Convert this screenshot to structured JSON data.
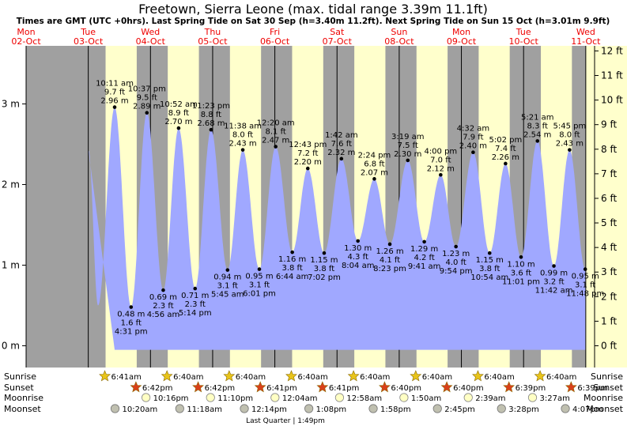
{
  "chart_data": {
    "type": "area",
    "title": "Freetown, Sierra Leone (max. tidal range 3.39m 11.1ft)",
    "subtitle": "Times are GMT (UTC +0hrs). Last Spring Tide on Sat 30 Sep (h=3.40m 11.2ft). Next Spring Tide on Sun 15 Oct (h=3.01m 9.9ft)",
    "days": [
      {
        "dow": "Mon",
        "date": "02-Oct"
      },
      {
        "dow": "Tue",
        "date": "03-Oct"
      },
      {
        "dow": "Wed",
        "date": "04-Oct"
      },
      {
        "dow": "Thu",
        "date": "05-Oct"
      },
      {
        "dow": "Fri",
        "date": "06-Oct"
      },
      {
        "dow": "Sat",
        "date": "07-Oct"
      },
      {
        "dow": "Sun",
        "date": "08-Oct"
      },
      {
        "dow": "Mon",
        "date": "09-Oct"
      },
      {
        "dow": "Tue",
        "date": "10-Oct"
      },
      {
        "dow": "Wed",
        "date": "11-Oct"
      }
    ],
    "y_left_ticks": [
      "0 m",
      "1 m",
      "2 m",
      "3 m"
    ],
    "y_right_ticks": [
      "0 ft",
      "1 ft",
      "2 ft",
      "3 ft",
      "4 ft",
      "5 ft",
      "6 ft",
      "7 ft",
      "8 ft",
      "9 ft",
      "10 ft",
      "11 ft",
      "12 ft"
    ],
    "ylim_m": [
      -0.08,
      3.68
    ],
    "x_range_days": [
      0,
      9
    ],
    "start_level_m": 2.42,
    "tides": [
      {
        "type": "high",
        "day": 1,
        "time": "10:11 am",
        "h_m": 2.96,
        "ft": "9.7 ft",
        "m": "2.96 m",
        "t": 10.18
      },
      {
        "type": "low",
        "day": 1,
        "time": "4:31 pm",
        "h_m": 0.48,
        "ft": "1.6 ft",
        "m": "0.48 m",
        "t": 16.52
      },
      {
        "type": "high",
        "day": 1,
        "time": "10:37 pm",
        "h_m": 2.89,
        "ft": "9.5 ft",
        "m": "2.89 m",
        "t": 22.62
      },
      {
        "type": "low",
        "day": 2,
        "time": "4:56 am",
        "h_m": 0.69,
        "ft": "2.3 ft",
        "m": "0.69 m",
        "t": 4.93
      },
      {
        "type": "high",
        "day": 2,
        "time": "10:52 am",
        "h_m": 2.7,
        "ft": "8.9 ft",
        "m": "2.70 m",
        "t": 10.87
      },
      {
        "type": "low",
        "day": 2,
        "time": "5:14 pm",
        "h_m": 0.71,
        "ft": "2.3 ft",
        "m": "0.71 m",
        "t": 17.23
      },
      {
        "type": "high",
        "day": 2,
        "time": "11:23 pm",
        "h_m": 2.68,
        "ft": "8.8 ft",
        "m": "2.68 m",
        "t": 23.38
      },
      {
        "type": "low",
        "day": 3,
        "time": "5:45 am",
        "h_m": 0.94,
        "ft": "3.1 ft",
        "m": "0.94 m",
        "t": 5.75
      },
      {
        "type": "high",
        "day": 3,
        "time": "11:38 am",
        "h_m": 2.43,
        "ft": "8.0 ft",
        "m": "2.43 m",
        "t": 11.63
      },
      {
        "type": "low",
        "day": 3,
        "time": "6:01 pm",
        "h_m": 0.95,
        "ft": "3.1 ft",
        "m": "0.95 m",
        "t": 18.02
      },
      {
        "type": "high",
        "day": 4,
        "time": "12:20 am",
        "h_m": 2.47,
        "ft": "8.1 ft",
        "m": "2.47 m",
        "t": 0.33
      },
      {
        "type": "low",
        "day": 4,
        "time": "6:44 am",
        "h_m": 1.16,
        "ft": "3.8 ft",
        "m": "1.16 m",
        "t": 6.73
      },
      {
        "type": "high",
        "day": 4,
        "time": "12:43 pm",
        "h_m": 2.2,
        "ft": "7.2 ft",
        "m": "2.20 m",
        "t": 12.72
      },
      {
        "type": "low",
        "day": 4,
        "time": "7:02 pm",
        "h_m": 1.15,
        "ft": "3.8 ft",
        "m": "1.15 m",
        "t": 19.03
      },
      {
        "type": "high",
        "day": 5,
        "time": "1:42 am",
        "h_m": 2.32,
        "ft": "7.6 ft",
        "m": "2.32 m",
        "t": 1.7
      },
      {
        "type": "low",
        "day": 5,
        "time": "8:04 am",
        "h_m": 1.3,
        "ft": "4.3 ft",
        "m": "1.30 m",
        "t": 8.07
      },
      {
        "type": "high",
        "day": 5,
        "time": "2:24 pm",
        "h_m": 2.07,
        "ft": "6.8 ft",
        "m": "2.07 m",
        "t": 14.4
      },
      {
        "type": "low",
        "day": 5,
        "time": "8:23 pm",
        "h_m": 1.26,
        "ft": "4.1 ft",
        "m": "1.26 m",
        "t": 20.38
      },
      {
        "type": "high",
        "day": 6,
        "time": "3:19 am",
        "h_m": 2.3,
        "ft": "7.5 ft",
        "m": "2.30 m",
        "t": 3.32
      },
      {
        "type": "low",
        "day": 6,
        "time": "9:41 am",
        "h_m": 1.29,
        "ft": "4.2 ft",
        "m": "1.29 m",
        "t": 9.68
      },
      {
        "type": "high",
        "day": 6,
        "time": "4:00 pm",
        "h_m": 2.12,
        "ft": "7.0 ft",
        "m": "2.12 m",
        "t": 16.0
      },
      {
        "type": "low",
        "day": 6,
        "time": "9:54 pm",
        "h_m": 1.23,
        "ft": "4.0 ft",
        "m": "1.23 m",
        "t": 21.9
      },
      {
        "type": "high",
        "day": 7,
        "time": "4:32 am",
        "h_m": 2.4,
        "ft": "7.9 ft",
        "m": "2.40 m",
        "t": 4.53
      },
      {
        "type": "low",
        "day": 7,
        "time": "10:54 am",
        "h_m": 1.15,
        "ft": "3.8 ft",
        "m": "1.15 m",
        "t": 10.9
      },
      {
        "type": "high",
        "day": 7,
        "time": "5:02 pm",
        "h_m": 2.26,
        "ft": "7.4 ft",
        "m": "2.26 m",
        "t": 17.03
      },
      {
        "type": "low",
        "day": 7,
        "time": "11:01 pm",
        "h_m": 1.1,
        "ft": "3.6 ft",
        "m": "1.10 m",
        "t": 23.02
      },
      {
        "type": "high",
        "day": 8,
        "time": "5:21 am",
        "h_m": 2.54,
        "ft": "8.3 ft",
        "m": "2.54 m",
        "t": 5.35
      },
      {
        "type": "low",
        "day": 8,
        "time": "11:42 am",
        "h_m": 0.99,
        "ft": "3.2 ft",
        "m": "0.99 m",
        "t": 11.7
      },
      {
        "type": "high",
        "day": 8,
        "time": "5:45 pm",
        "h_m": 2.43,
        "ft": "8.0 ft",
        "m": "2.43 m",
        "t": 17.75
      },
      {
        "type": "low",
        "day": 8,
        "time": "11:48 pm",
        "h_m": 0.95,
        "ft": "3.1 ft",
        "m": "0.95 m",
        "t": 23.8
      }
    ],
    "sunrise": [
      {
        "day": 1,
        "time": "6:41am",
        "t": 6.68
      },
      {
        "day": 2,
        "time": "6:40am",
        "t": 6.67
      },
      {
        "day": 3,
        "time": "6:40am",
        "t": 6.67
      },
      {
        "day": 4,
        "time": "6:40am",
        "t": 6.67
      },
      {
        "day": 5,
        "time": "6:40am",
        "t": 6.67
      },
      {
        "day": 6,
        "time": "6:40am",
        "t": 6.67
      },
      {
        "day": 7,
        "time": "6:40am",
        "t": 6.67
      },
      {
        "day": 8,
        "time": "6:40am",
        "t": 6.67
      }
    ],
    "sunset": [
      {
        "day": 1,
        "time": "6:42pm",
        "t": 18.7
      },
      {
        "day": 2,
        "time": "6:42pm",
        "t": 18.7
      },
      {
        "day": 3,
        "time": "6:41pm",
        "t": 18.68
      },
      {
        "day": 4,
        "time": "6:41pm",
        "t": 18.68
      },
      {
        "day": 5,
        "time": "6:40pm",
        "t": 18.67
      },
      {
        "day": 6,
        "time": "6:40pm",
        "t": 18.67
      },
      {
        "day": 7,
        "time": "6:39pm",
        "t": 18.65
      },
      {
        "day": 8,
        "time": "6:39pm",
        "t": 18.65
      }
    ],
    "moonrise": [
      {
        "day": 1,
        "time": "10:16pm",
        "t": 22.27
      },
      {
        "day": 2,
        "time": "11:10pm",
        "t": 23.17
      },
      {
        "day": 4,
        "time": "12:04am",
        "t": 0.07
      },
      {
        "day": 5,
        "time": "12:58am",
        "t": 0.97
      },
      {
        "day": 6,
        "time": "1:50am",
        "t": 1.83
      },
      {
        "day": 7,
        "time": "2:39am",
        "t": 2.65
      },
      {
        "day": 8,
        "time": "3:27am",
        "t": 3.45
      }
    ],
    "moonset": [
      {
        "day": 1,
        "time": "10:20am",
        "t": 10.33
      },
      {
        "day": 2,
        "time": "11:18am",
        "t": 11.3
      },
      {
        "day": 3,
        "time": "12:14pm",
        "t": 12.23
      },
      {
        "day": 4,
        "time": "1:08pm",
        "t": 13.13
      },
      {
        "day": 5,
        "time": "1:58pm",
        "t": 13.97
      },
      {
        "day": 6,
        "time": "2:45pm",
        "t": 14.75
      },
      {
        "day": 7,
        "time": "3:28pm",
        "t": 15.47
      },
      {
        "day": 8,
        "time": "4:07pm",
        "t": 16.12
      }
    ],
    "row_labels": {
      "sunrise": "Sunrise",
      "sunset": "Sunset",
      "moonrise": "Moonrise",
      "moonset": "Moonset"
    },
    "moon_phase": "Last Quarter | 1:49pm",
    "colors": {
      "night": "#a0a0a0",
      "day": "#ffffcc",
      "water": "#a0a8ff",
      "red": "#ee0000",
      "sun": "#e8c41a",
      "sunset": "#d9401a"
    }
  }
}
